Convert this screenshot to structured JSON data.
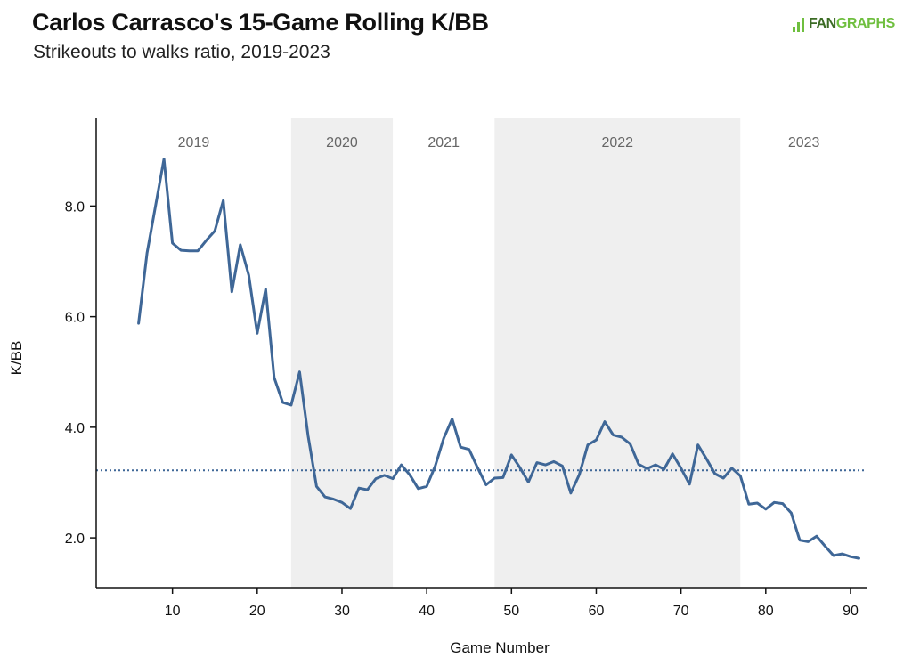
{
  "header": {
    "title": "Carlos Carrasco's 15-Game Rolling K/BB",
    "subtitle": "Strikeouts to walks ratio, 2019-2023"
  },
  "logo": {
    "text_a": "FAN",
    "text_b": "GRAPHS",
    "color": "#6fbf3f"
  },
  "chart_data": {
    "type": "line",
    "title": "Carlos Carrasco's 15-Game Rolling K/BB",
    "subtitle": "Strikeouts to walks ratio, 2019-2023",
    "xlabel": "Game Number",
    "ylabel": "K/BB",
    "xlim": [
      1,
      92
    ],
    "ylim": [
      1.1,
      9.6
    ],
    "xticks": [
      10,
      20,
      30,
      40,
      50,
      60,
      70,
      80,
      90
    ],
    "yticks": [
      2.0,
      4.0,
      6.0,
      8.0
    ],
    "ytick_labels": [
      "2.0",
      "4.0",
      "6.0",
      "8.0"
    ],
    "grid": false,
    "line_color": "#3f6797",
    "shade_color": "#efefef",
    "reference_line": {
      "value": 3.22,
      "style": "dotted",
      "color": "#3f6797"
    },
    "seasons": [
      {
        "label": "2019",
        "start": 1,
        "end": 24,
        "shaded": false
      },
      {
        "label": "2020",
        "start": 24,
        "end": 36,
        "shaded": true
      },
      {
        "label": "2021",
        "start": 36,
        "end": 48,
        "shaded": false
      },
      {
        "label": "2022",
        "start": 48,
        "end": 77,
        "shaded": true
      },
      {
        "label": "2023",
        "start": 77,
        "end": 92,
        "shaded": false
      }
    ],
    "series": [
      {
        "x": [
          6,
          7,
          8,
          9,
          10,
          11,
          12,
          13,
          14,
          15,
          16,
          17,
          18,
          19,
          20,
          21,
          22,
          23,
          24,
          25,
          26,
          27,
          28,
          29,
          30,
          31,
          32,
          33,
          34,
          35,
          36,
          37,
          38,
          39,
          40,
          41,
          42,
          43,
          44,
          45,
          46,
          47,
          48,
          49,
          50,
          51,
          52,
          53,
          54,
          55,
          56,
          57,
          58,
          59,
          60,
          61,
          62,
          63,
          64,
          65,
          66,
          67,
          68,
          69,
          70,
          71,
          72,
          73,
          74,
          75,
          76,
          77,
          78,
          79,
          80,
          81,
          82,
          83,
          84,
          85,
          86,
          87,
          88,
          89,
          90,
          91
        ],
        "y": [
          5.88,
          7.15,
          8.0,
          8.85,
          7.33,
          7.2,
          7.19,
          7.19,
          7.38,
          7.55,
          8.1,
          6.45,
          7.3,
          6.75,
          5.7,
          6.5,
          4.9,
          4.45,
          4.4,
          5.0,
          3.85,
          2.93,
          2.74,
          2.7,
          2.64,
          2.53,
          2.9,
          2.87,
          3.07,
          3.13,
          3.07,
          3.32,
          3.14,
          2.89,
          2.93,
          3.3,
          3.8,
          4.15,
          3.64,
          3.6,
          3.27,
          2.96,
          3.08,
          3.09,
          3.5,
          3.27,
          3.01,
          3.36,
          3.32,
          3.38,
          3.3,
          2.81,
          3.14,
          3.68,
          3.77,
          4.1,
          3.86,
          3.82,
          3.7,
          3.33,
          3.25,
          3.32,
          3.24,
          3.52,
          3.26,
          2.97,
          3.68,
          3.43,
          3.16,
          3.08,
          3.26,
          3.12,
          2.61,
          2.63,
          2.52,
          2.64,
          2.62,
          2.45,
          1.96,
          1.93,
          2.03,
          1.85,
          1.68,
          1.71,
          1.66,
          1.63
        ]
      }
    ]
  }
}
